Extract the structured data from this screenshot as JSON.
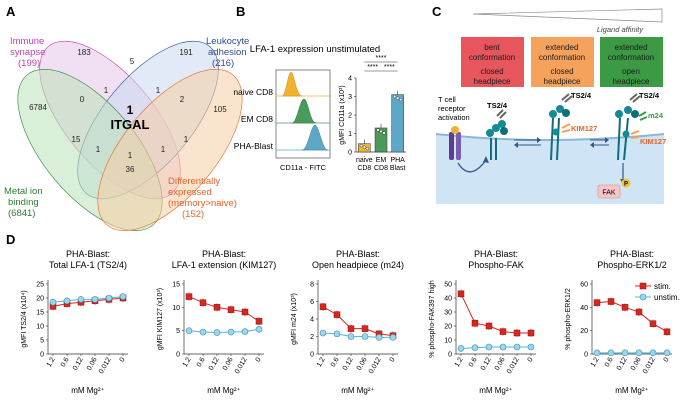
{
  "panels": {
    "A": {
      "letter": "A",
      "sets": [
        {
          "name_lines": [
            "Immune",
            "synapse"
          ],
          "count": "(199)",
          "color": "#c13fb1"
        },
        {
          "name_lines": [
            "Leukocyte",
            "adhesion"
          ],
          "count": "(216)",
          "color": "#2e4e8f"
        },
        {
          "name_lines": [
            "Metal ion",
            "binding"
          ],
          "count": "(6841)",
          "color": "#2e7d32"
        },
        {
          "name_lines": [
            "Differentially",
            "expressed",
            "(memory>naive)"
          ],
          "count": "(152)",
          "color": "#e8642a"
        }
      ],
      "region_counts": {
        "syn_only": "183",
        "leu_only": "191",
        "met_only": "6784",
        "dif_only": "105",
        "syn_leu": "5",
        "syn_met": "0",
        "leu_dif": "2",
        "met_dif": "36",
        "syn_dif": "1",
        "leu_met": "1",
        "syn_leu_met": "1",
        "syn_leu_dif": "1",
        "syn_met_dif": "1",
        "leu_met_dif": "1",
        "met_dif_2": "15"
      },
      "center_count": "1",
      "center_gene": "ITGAL"
    },
    "B": {
      "letter": "B",
      "title": "LFA-1 expression unstimulated",
      "histogram": {
        "rows": [
          "naive CD8",
          "EM CD8",
          "PHA-Blast"
        ],
        "colors": [
          "#f2b230",
          "#4a9a5a",
          "#5fa7c7"
        ],
        "xlabel": "CD11a - FITC"
      },
      "bar": {
        "ylabel": "gMFI CD11a (x10³)",
        "yticks": [
          "0",
          "1",
          "2",
          "3",
          "4"
        ],
        "categories": [
          [
            "naive",
            "CD8"
          ],
          [
            "EM",
            "CD8"
          ],
          [
            "PHA",
            "Blast"
          ]
        ],
        "stars": [
          "****",
          "****",
          "****"
        ]
      }
    },
    "C": {
      "letter": "C",
      "affinity_label": "Ligand affinity",
      "boxes": [
        {
          "line1": "bent",
          "line2": "conformation",
          "line3": "closed",
          "line4": "headpiece",
          "color": "#e8565d"
        },
        {
          "line1": "extended",
          "line2": "conformation",
          "line3": "closed",
          "line4": "headpiece",
          "color": "#f5a35c"
        },
        {
          "line1": "extended",
          "line2": "conformation",
          "line3": "open",
          "line4": "headpiece",
          "color": "#3c9a45"
        }
      ],
      "tcr_label": [
        "T cell",
        "receptor",
        "activation"
      ],
      "antibody_labels": [
        "TS2/4",
        "TS2/4",
        "TS2/4",
        "KIM127",
        "KIM127",
        "m24"
      ],
      "fak_label": "FAK",
      "p_label": "P"
    },
    "D": {
      "letter": "D",
      "xlabel": "mM Mg²⁺",
      "legend": [
        {
          "label": "stim.",
          "color": "#d7261e"
        },
        {
          "label": "unstim.",
          "color": "#5ab4d6"
        }
      ]
    }
  },
  "chart_data": [
    {
      "type": "bar",
      "title": "LFA-1 expression unstimulated",
      "categories": [
        "naive CD8",
        "EM CD8",
        "PHA Blast"
      ],
      "values": [
        0.45,
        1.3,
        3.1
      ],
      "colors": [
        "#f2b230",
        "#4a9a5a",
        "#5fa7c7"
      ],
      "ylabel": "gMFI CD11a (x10³)",
      "ylim": [
        0,
        4
      ]
    },
    {
      "type": "line",
      "title": "PHA-Blast: Total LFA-1 (TS2/4)",
      "x": [
        "1.2",
        "0.6",
        "0.12",
        "0.06",
        "0.012",
        "0"
      ],
      "ylabel": "gMFI TS2/4 (x10⁴)",
      "ylim": [
        0,
        25
      ],
      "yticks": [
        0,
        5,
        10,
        15,
        20,
        25
      ],
      "series": [
        {
          "name": "stim.",
          "values": [
            17,
            18,
            18.5,
            19,
            19.5,
            20
          ]
        },
        {
          "name": "unstim.",
          "values": [
            18.5,
            19,
            19.5,
            19.5,
            20,
            20.5
          ]
        }
      ]
    },
    {
      "type": "line",
      "title": "PHA-Blast: LFA-1 extension (KIM127)",
      "x": [
        "1.2",
        "0.6",
        "0.12",
        "0.06",
        "0.012",
        "0"
      ],
      "ylabel": "gMFI KIM127 (x10³)",
      "ylim": [
        0,
        15
      ],
      "yticks": [
        0,
        5,
        10,
        15
      ],
      "series": [
        {
          "name": "stim.",
          "values": [
            12.3,
            11,
            10,
            9.5,
            9,
            7
          ]
        },
        {
          "name": "unstim.",
          "values": [
            5,
            4.7,
            4.6,
            4.7,
            4.8,
            5.3
          ]
        }
      ]
    },
    {
      "type": "line",
      "title": "PHA-Blast: Open headpiece (m24)",
      "x": [
        "1.2",
        "0.6",
        "0.12",
        "0.06",
        "0.012",
        "0"
      ],
      "ylabel": "gMFI m24 (x10³)",
      "ylim": [
        0,
        8
      ],
      "yticks": [
        0,
        2,
        4,
        6,
        8
      ],
      "series": [
        {
          "name": "stim.",
          "values": [
            5.4,
            4.5,
            2.9,
            2.9,
            2.3,
            2.1
          ]
        },
        {
          "name": "unstim.",
          "values": [
            2.4,
            2.3,
            2.0,
            2.0,
            1.9,
            1.9
          ]
        }
      ]
    },
    {
      "type": "line",
      "title": "PHA-Blast: Phospho-FAK",
      "x": [
        "1.2",
        "0.6",
        "0.12",
        "0.06",
        "0.012",
        "0"
      ],
      "ylabel": "% phospho-FAK397 high",
      "ylim": [
        0,
        50
      ],
      "yticks": [
        0,
        10,
        20,
        30,
        40,
        50
      ],
      "series": [
        {
          "name": "stim.",
          "values": [
            43,
            22,
            20,
            16,
            15,
            15
          ]
        },
        {
          "name": "unstim.",
          "values": [
            4,
            4.5,
            5,
            5,
            5,
            5
          ]
        }
      ]
    },
    {
      "type": "line",
      "title": "PHA-Blast: Phospho-ERK1/2",
      "x": [
        "1.2",
        "0.6",
        "0.12",
        "0.06",
        "0.012",
        "0"
      ],
      "ylabel": "% phospho-ERK1/2",
      "ylim": [
        0,
        60
      ],
      "yticks": [
        0,
        20,
        40,
        60
      ],
      "series": [
        {
          "name": "stim.",
          "values": [
            44,
            45,
            40,
            36,
            26,
            19
          ]
        },
        {
          "name": "unstim.",
          "values": [
            1,
            1,
            1,
            1,
            1,
            1
          ]
        }
      ]
    }
  ],
  "line_titles": [
    [
      "PHA-Blast:",
      "Total LFA-1 (TS2/4)"
    ],
    [
      "PHA-Blast:",
      "LFA-1 extension (KIM127)"
    ],
    [
      "PHA-Blast:",
      "Open headpiece (m24)"
    ],
    [
      "PHA-Blast:",
      "Phospho-FAK"
    ],
    [
      "PHA-Blast:",
      "Phospho-ERK1/2"
    ]
  ],
  "line_ylabels": [
    "gMFI TS2/4 (x10⁴)",
    "gMFI KIM127 (x10³)",
    "gMFI m24 (x10³)",
    "% phospho-FAK397 high",
    "% phospho-ERK1/2"
  ]
}
